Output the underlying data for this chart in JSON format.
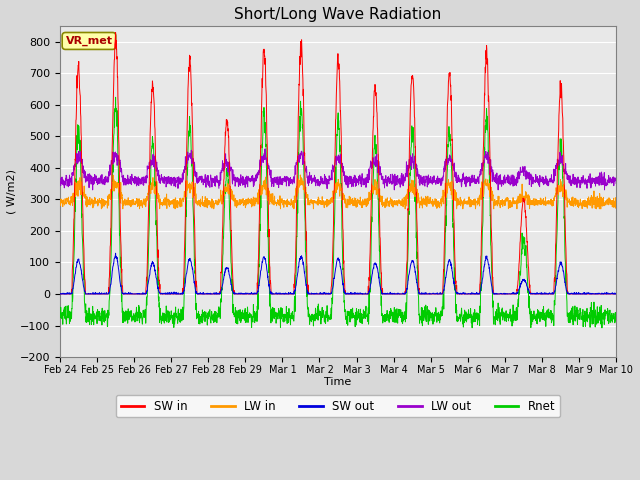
{
  "title": "Short/Long Wave Radiation",
  "xlabel": "Time",
  "ylabel": "( W/m2)",
  "ylim": [
    -200,
    850
  ],
  "yticks": [
    -200,
    -100,
    0,
    100,
    200,
    300,
    400,
    500,
    600,
    700,
    800
  ],
  "date_labels": [
    "Feb 24",
    "Feb 25",
    "Feb 26",
    "Feb 27",
    "Feb 28",
    "Feb 29",
    "Mar 1",
    "Mar 2",
    "Mar 3",
    "Mar 4",
    "Mar 5",
    "Mar 6",
    "Mar 7",
    "Mar 8",
    "Mar 9",
    "Mar 10"
  ],
  "station_label": "VR_met",
  "colors": {
    "SW_in": "#ff0000",
    "LW_in": "#ff9900",
    "SW_out": "#0000dd",
    "LW_out": "#9900cc",
    "Rnet": "#00cc00"
  },
  "legend_labels": [
    "SW in",
    "LW in",
    "SW out",
    "LW out",
    "Rnet"
  ],
  "plot_bg_color": "#e8e8e8",
  "fig_bg_color": "#d8d8d8",
  "title_fontsize": 11
}
